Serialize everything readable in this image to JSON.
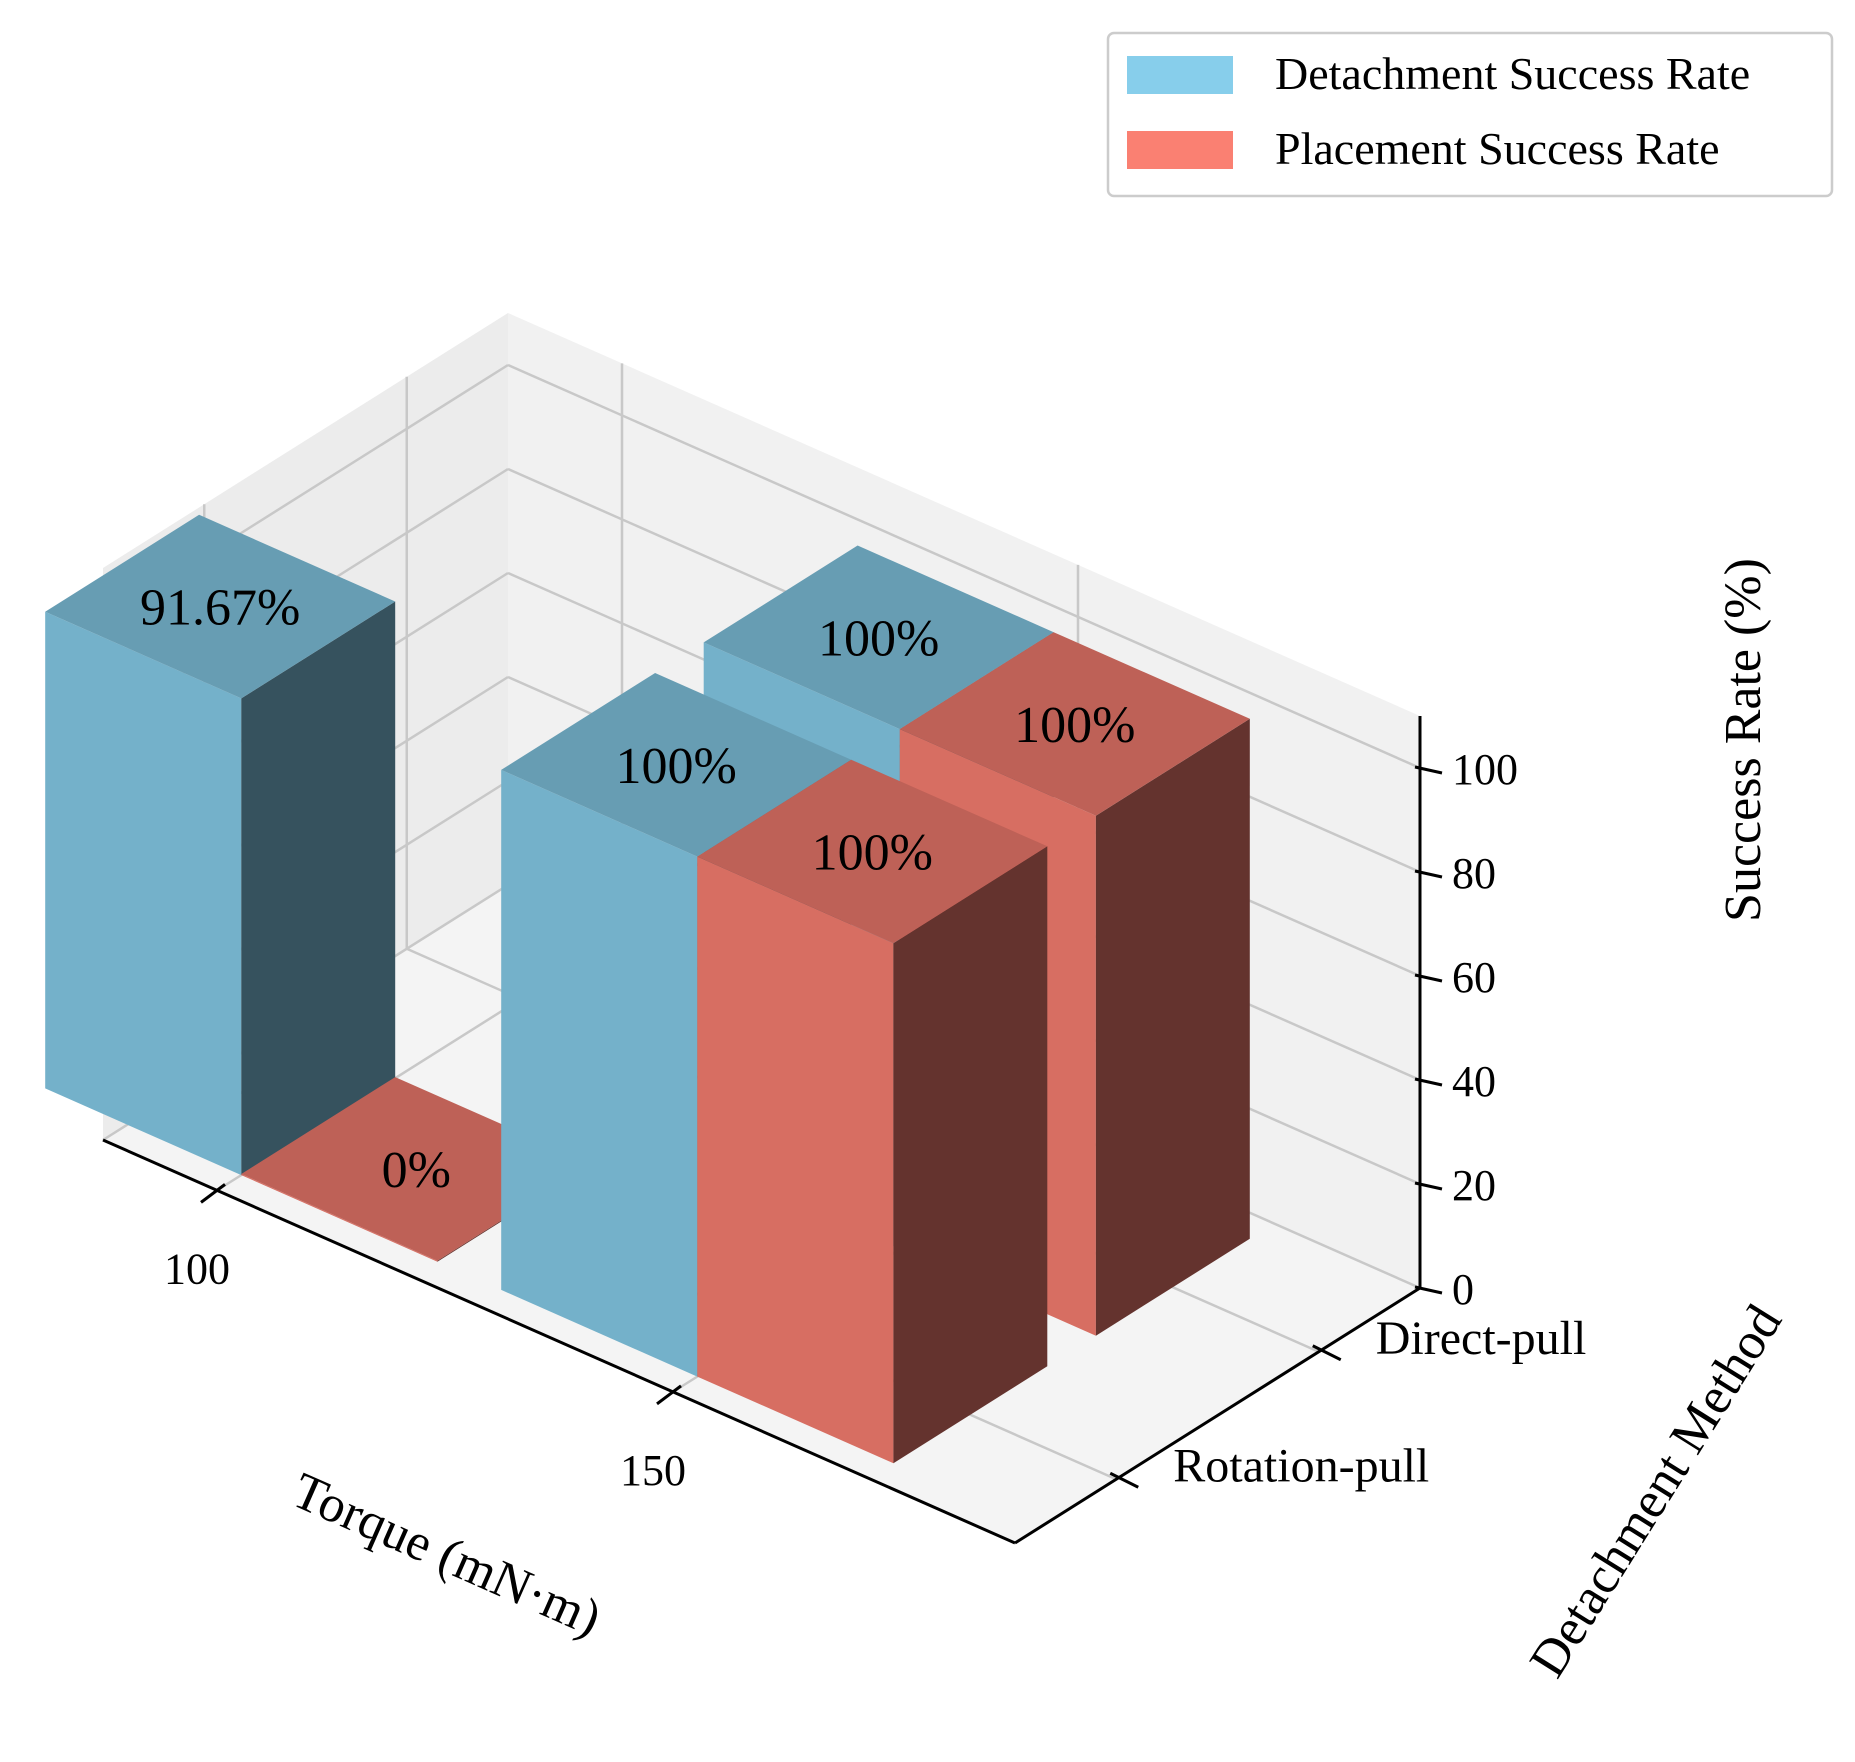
{
  "chart_data": {
    "type": "bar3d",
    "x_categories": [
      "100",
      "150"
    ],
    "y_categories": [
      "Rotation-pull",
      "Direct-pull"
    ],
    "xlabel": "Torque (mN·m)",
    "ylabel": "Detachment Method",
    "zlabel": "Success Rate (%)",
    "zlim": [
      0,
      110
    ],
    "zticks": [
      0,
      20,
      40,
      60,
      80,
      100
    ],
    "grid": true,
    "legend_position": "top-right",
    "series": [
      {
        "name": "Detachment Success Rate",
        "color": "#87CEEB"
      },
      {
        "name": "Placement Success Rate",
        "color": "#FA8072"
      }
    ],
    "bars": [
      {
        "x": "100",
        "y": "Rotation-pull",
        "series": "Detachment Success Rate",
        "value": 91.67,
        "label": "91.67%"
      },
      {
        "x": "100",
        "y": "Rotation-pull",
        "series": "Placement Success Rate",
        "value": 0,
        "label": "0%"
      },
      {
        "x": "150",
        "y": "Rotation-pull",
        "series": "Detachment Success Rate",
        "value": 100,
        "label": "100%"
      },
      {
        "x": "150",
        "y": "Rotation-pull",
        "series": "Placement Success Rate",
        "value": 100,
        "label": "100%"
      },
      {
        "x": "150",
        "y": "Direct-pull",
        "series": "Detachment Success Rate",
        "value": 100,
        "label": "100%"
      },
      {
        "x": "150",
        "y": "Direct-pull",
        "series": "Placement Success Rate",
        "value": 100,
        "label": "100%"
      }
    ]
  }
}
